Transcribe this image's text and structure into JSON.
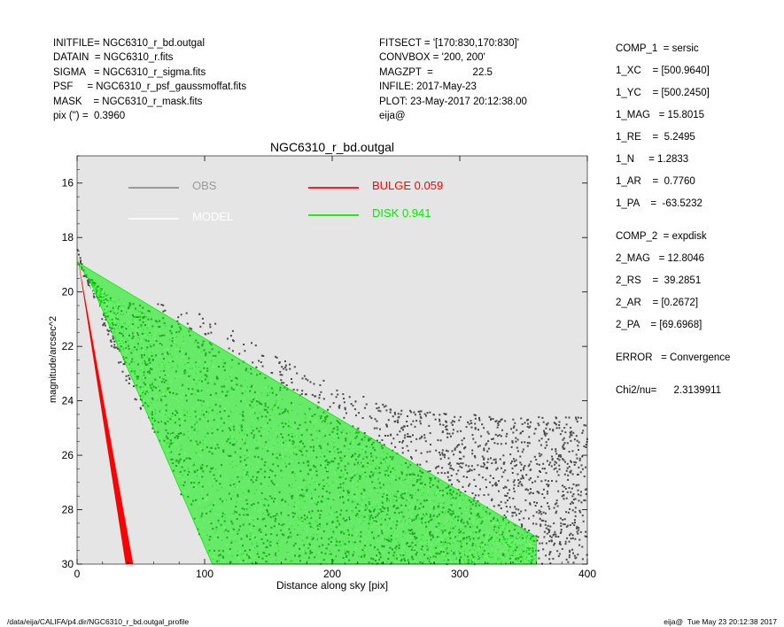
{
  "header_left": [
    "INITFILE= NGC6310_r_bd.outgal",
    "DATAIN  = NGC6310_r.fits",
    "SIGMA   = NGC6310_r_sigma.fits",
    "PSF     = NGC6310_r_psf_gaussmoffat.fits",
    "MASK    = NGC6310_r_mask.fits",
    "pix (\") =  0.3960"
  ],
  "header_mid": [
    "FITSECT = '[170:830,170:830]'",
    "CONVBOX = '200, 200'",
    "MAGZPT  =              22.5",
    "INFILE: 2017-May-23",
    "PLOT: 23-May-2017 20:12:38.00",
    "eija@"
  ],
  "params": [
    "COMP_1  = sersic",
    "1_XC    = [500.9640]",
    "1_YC    = [500.2450]",
    "1_MAG   = 15.8015",
    "1_RE    =  5.2495",
    "1_N     = 1.2833",
    "1_AR    =  0.7760",
    "1_PA    =  -63.5232",
    "COMP_2  = expdisk",
    "2_MAG   = 12.8046",
    "2_RS    =  39.2851",
    "2_AR    = [0.2672]",
    "2_PA    = [69.6968]",
    "ERROR   = Convergence",
    "Chi2/nu=      2.3139911"
  ],
  "footer_left": "/data/eija/CALIFA/p4.dir/NGC6310_r_bd.outgal_profile",
  "footer_right": "eija@  Tue May 23 20:12:38 2017",
  "colors": {
    "plot_bg": "#e5e5e5",
    "obs": "#4a4a4a",
    "model": "#ffffff",
    "bulge": "#ff0000",
    "disk": "#00ee00"
  },
  "chart_data": {
    "type": "scatter",
    "title": "NGC6310_r_bd.outgal",
    "xlabel": "Distance along sky [pix]",
    "ylabel": "magnitude/arcsec^2",
    "xlim": [
      0,
      400
    ],
    "ylim": [
      30,
      15
    ],
    "y_inverted": true,
    "xticks": [
      0,
      100,
      200,
      300,
      400
    ],
    "yticks": [
      16,
      18,
      20,
      22,
      24,
      26,
      28,
      30
    ],
    "grid": false,
    "legend": [
      {
        "label": "OBS",
        "color": "#808080"
      },
      {
        "label": "MODEL",
        "color": "#ffffff"
      },
      {
        "label": "BULGE",
        "value": "0.059",
        "color": "#ff0000"
      },
      {
        "label": "DISK",
        "value": "0.941",
        "color": "#00ee00"
      }
    ],
    "series": [
      {
        "name": "BULGE",
        "envelope_upper": [
          [
            0,
            18.6
          ],
          [
            38,
            30
          ]
        ],
        "envelope_lower": [
          [
            0,
            18.6
          ],
          [
            44,
            30
          ]
        ]
      },
      {
        "name": "DISK",
        "envelope_upper": [
          [
            0,
            18.9
          ],
          [
            10,
            19.6
          ],
          [
            360,
            29.0
          ]
        ],
        "envelope_lower": [
          [
            10,
            19.6
          ],
          [
            106,
            30
          ]
        ]
      },
      {
        "name": "OBS",
        "envelope_upper": [
          [
            0,
            18.2
          ],
          [
            5,
            19.2
          ],
          [
            30,
            20.4
          ],
          [
            60,
            20.4
          ],
          [
            100,
            20.8
          ],
          [
            150,
            22.2
          ],
          [
            200,
            23.4
          ],
          [
            250,
            24.3
          ],
          [
            300,
            24.5
          ],
          [
            400,
            24.6
          ]
        ],
        "envelope_lower": [
          [
            0,
            18.6
          ],
          [
            20,
            21.2
          ],
          [
            45,
            24.0
          ],
          [
            70,
            26.0
          ],
          [
            90,
            28.5
          ],
          [
            110,
            30
          ]
        ]
      },
      {
        "name": "MODEL",
        "envelope_upper": [
          [
            10,
            19.7
          ],
          [
            360,
            29.3
          ]
        ],
        "envelope_lower": [
          [
            10,
            19.7
          ],
          [
            106,
            30
          ]
        ]
      }
    ]
  }
}
